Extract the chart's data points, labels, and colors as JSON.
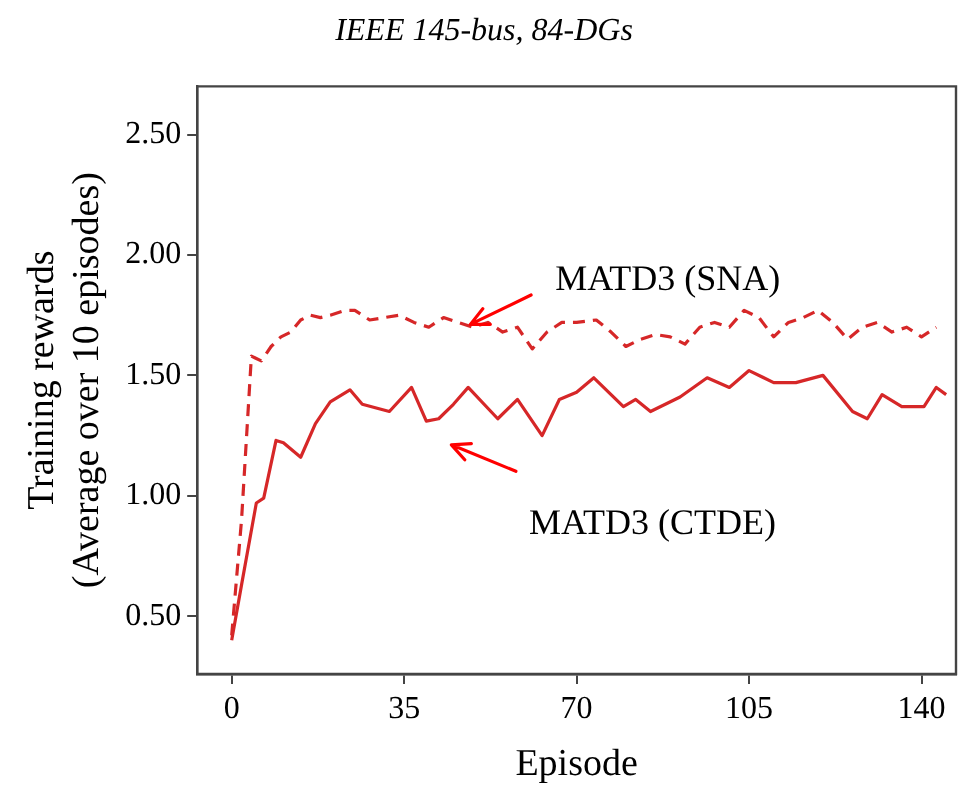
{
  "chart_data": {
    "type": "line",
    "title": "IEEE 145-bus, 84-DGs",
    "xlabel": "Episode",
    "ylabel": "Training rewards\n(Average over 10 episodes)",
    "xlim": [
      -7,
      147
    ],
    "xticks": [
      0,
      35,
      70,
      105,
      140
    ],
    "ylim": [
      0.26,
      2.7
    ],
    "yticks": [
      {
        "value": 0.5,
        "label": "0.50"
      },
      {
        "value": 1,
        "label": "1.00"
      },
      {
        "value": 1.5,
        "label": "1.50"
      },
      {
        "value": 2,
        "label": "2.00"
      },
      {
        "value": 2.5,
        "label": "2.50"
      }
    ],
    "grid": false,
    "legend": false,
    "marker": "none",
    "series": [
      {
        "name": "MATD3 (SNA)",
        "color": "#d62728",
        "line_style": "dashed",
        "x": [
          0,
          2,
          4,
          6,
          8,
          10,
          12,
          14,
          16,
          18,
          20,
          23,
          25,
          28,
          31,
          34,
          37,
          40,
          43,
          46,
          49,
          52,
          55,
          58,
          61,
          64,
          67,
          70,
          74,
          77,
          80,
          83,
          86,
          89,
          92,
          95,
          98,
          101,
          104,
          107,
          110,
          113,
          116,
          119,
          122,
          125,
          128,
          131,
          134,
          137,
          140,
          143
        ],
        "values": [
          0.42,
          0.9,
          1.58,
          1.56,
          1.62,
          1.66,
          1.68,
          1.73,
          1.75,
          1.74,
          1.75,
          1.77,
          1.77,
          1.73,
          1.74,
          1.75,
          1.72,
          1.7,
          1.74,
          1.72,
          1.7,
          1.72,
          1.68,
          1.7,
          1.61,
          1.68,
          1.72,
          1.72,
          1.73,
          1.68,
          1.62,
          1.65,
          1.67,
          1.66,
          1.63,
          1.7,
          1.72,
          1.7,
          1.77,
          1.74,
          1.66,
          1.72,
          1.74,
          1.77,
          1.72,
          1.65,
          1.7,
          1.72,
          1.68,
          1.7,
          1.66,
          1.7
        ]
      },
      {
        "name": "MATD3 (CTDE)",
        "color": "#d62728",
        "line_style": "solid",
        "x": [
          0,
          2,
          5,
          6.5,
          9,
          10.5,
          14,
          17,
          20,
          24,
          26.5,
          32,
          36.5,
          39.5,
          42,
          45,
          48,
          54,
          58,
          63,
          66.5,
          70,
          73.5,
          79.5,
          82,
          85,
          91,
          96.5,
          101,
          105,
          110,
          114.5,
          120,
          126,
          129,
          132,
          136,
          140.5,
          143,
          145
        ],
        "values": [
          0.4,
          0.63,
          0.97,
          0.99,
          1.23,
          1.22,
          1.16,
          1.3,
          1.39,
          1.44,
          1.38,
          1.35,
          1.45,
          1.31,
          1.32,
          1.38,
          1.45,
          1.32,
          1.4,
          1.25,
          1.4,
          1.43,
          1.49,
          1.37,
          1.4,
          1.35,
          1.41,
          1.49,
          1.45,
          1.52,
          1.47,
          1.47,
          1.5,
          1.35,
          1.32,
          1.42,
          1.37,
          1.37,
          1.45,
          1.42
        ]
      }
    ]
  }
}
